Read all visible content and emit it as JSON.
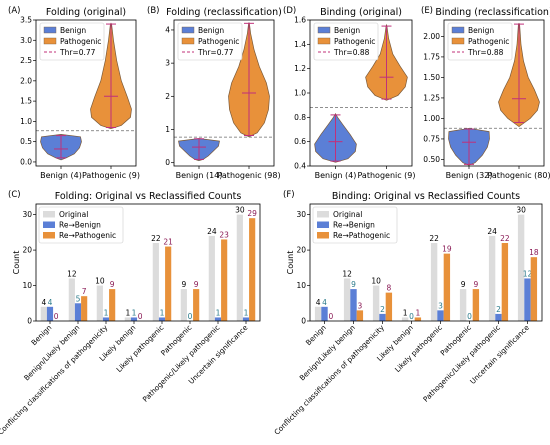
{
  "colors": {
    "benign": "#5b7fd6",
    "pathogenic": "#e8913a",
    "violin_edge": "#7a5a3a",
    "whisker": "#c0307a",
    "threshold": "#6a6a6a",
    "original_bar": "#dcdcdc",
    "re_benign_bar": "#5b7fd6",
    "re_pathogenic_bar": "#e8913a",
    "lbl_original": "#000000",
    "lbl_re_benign": "#2a7a8a",
    "lbl_re_pathogenic": "#8a1a55"
  },
  "chart_data": [
    {
      "panel": "(A)",
      "type": "violin",
      "title": "Folding (original)",
      "legend": [
        "Benign",
        "Pathogenic",
        "Thr=0.77"
      ],
      "legend_position": "top-left",
      "categories": [
        "Benign (4)",
        "Pathogenic (9)"
      ],
      "threshold": 0.77,
      "ylim": [
        -0.1,
        3.5
      ],
      "yticks": [
        0.0,
        0.5,
        1.0,
        1.5,
        2.0,
        2.5,
        3.0,
        3.5
      ],
      "ytick_labels": [
        "0.0",
        "0.5",
        "1.0",
        "1.5",
        "2.0",
        "2.5",
        "3.0",
        "3.5"
      ],
      "violins": [
        {
          "series": "Benign",
          "min": 0.1,
          "max": 0.65,
          "median": 0.32,
          "profile": [
            [
              0.05,
              0.0
            ],
            [
              0.1,
              0.25
            ],
            [
              0.2,
              0.65
            ],
            [
              0.35,
              0.9
            ],
            [
              0.5,
              1.0
            ],
            [
              0.62,
              0.95
            ],
            [
              0.68,
              0.0
            ]
          ]
        },
        {
          "series": "Pathogenic",
          "min": 0.85,
          "max": 3.4,
          "median": 1.62,
          "profile": [
            [
              0.82,
              0.0
            ],
            [
              0.9,
              0.5
            ],
            [
              1.1,
              0.95
            ],
            [
              1.3,
              1.0
            ],
            [
              1.6,
              0.8
            ],
            [
              2.0,
              0.5
            ],
            [
              2.5,
              0.28
            ],
            [
              3.0,
              0.12
            ],
            [
              3.4,
              0.03
            ],
            [
              3.42,
              0.0
            ]
          ]
        }
      ]
    },
    {
      "panel": "(B)",
      "type": "violin",
      "title": "Folding (reclassification)",
      "legend": [
        "Benign",
        "Pathogenic",
        "Thr=0.77"
      ],
      "legend_position": "top-left",
      "categories": [
        "Benign (14)",
        "Pathogenic (98)"
      ],
      "threshold": 0.77,
      "ylim": [
        -0.1,
        4.3
      ],
      "yticks": [
        0,
        1,
        2,
        3,
        4
      ],
      "ytick_labels": [
        "0",
        "1",
        "2",
        "3",
        "4"
      ],
      "violins": [
        {
          "series": "Benign",
          "min": 0.1,
          "max": 0.72,
          "median": 0.47,
          "profile": [
            [
              0.06,
              0.0
            ],
            [
              0.1,
              0.2
            ],
            [
              0.2,
              0.45
            ],
            [
              0.35,
              0.7
            ],
            [
              0.5,
              0.95
            ],
            [
              0.65,
              1.0
            ],
            [
              0.73,
              0.0
            ]
          ]
        },
        {
          "series": "Pathogenic",
          "min": 0.82,
          "max": 4.2,
          "median": 2.1,
          "profile": [
            [
              0.78,
              0.0
            ],
            [
              0.9,
              0.4
            ],
            [
              1.2,
              0.75
            ],
            [
              1.6,
              0.95
            ],
            [
              2.0,
              1.0
            ],
            [
              2.4,
              0.85
            ],
            [
              2.9,
              0.5
            ],
            [
              3.4,
              0.25
            ],
            [
              3.9,
              0.08
            ],
            [
              4.2,
              0.02
            ],
            [
              4.22,
              0.0
            ]
          ]
        }
      ]
    },
    {
      "panel": "(D)",
      "type": "violin",
      "title": "Binding (original)",
      "legend": [
        "Benign",
        "Pathogenic",
        "Thr=0.88"
      ],
      "legend_position": "top-left",
      "categories": [
        "Benign (4)",
        "Pathogenic (9)"
      ],
      "threshold": 0.88,
      "ylim": [
        0.4,
        1.6
      ],
      "yticks": [
        0.4,
        0.6,
        0.8,
        1.0,
        1.2,
        1.4,
        1.6
      ],
      "ytick_labels": [
        "0.4",
        "0.6",
        "0.8",
        "1.0",
        "1.2",
        "1.4",
        "1.6"
      ],
      "violins": [
        {
          "series": "Benign",
          "min": 0.44,
          "max": 0.82,
          "median": 0.6,
          "profile": [
            [
              0.43,
              0.0
            ],
            [
              0.46,
              0.6
            ],
            [
              0.52,
              0.95
            ],
            [
              0.58,
              1.0
            ],
            [
              0.66,
              0.7
            ],
            [
              0.74,
              0.35
            ],
            [
              0.8,
              0.1
            ],
            [
              0.83,
              0.0
            ]
          ]
        },
        {
          "series": "Pathogenic",
          "min": 0.95,
          "max": 1.55,
          "median": 1.13,
          "profile": [
            [
              0.94,
              0.0
            ],
            [
              0.98,
              0.55
            ],
            [
              1.05,
              0.9
            ],
            [
              1.13,
              1.0
            ],
            [
              1.22,
              0.65
            ],
            [
              1.32,
              0.3
            ],
            [
              1.45,
              0.1
            ],
            [
              1.55,
              0.02
            ],
            [
              1.56,
              0.0
            ]
          ]
        }
      ]
    },
    {
      "panel": "(E)",
      "type": "violin",
      "title": "Binding (reclassification)",
      "legend": [
        "Benign",
        "Pathogenic",
        "Thr=0.88"
      ],
      "legend_position": "top-left",
      "categories": [
        "Benign (32)",
        "Pathogenic (80)"
      ],
      "threshold": 0.88,
      "ylim": [
        0.42,
        2.2
      ],
      "yticks": [
        0.5,
        0.75,
        1.0,
        1.25,
        1.5,
        1.75,
        2.0
      ],
      "ytick_labels": [
        "0.50",
        "0.75",
        "1.00",
        "1.25",
        "1.50",
        "1.75",
        "2.00"
      ],
      "violins": [
        {
          "series": "Benign",
          "min": 0.44,
          "max": 0.87,
          "median": 0.71,
          "profile": [
            [
              0.43,
              0.0
            ],
            [
              0.46,
              0.3
            ],
            [
              0.55,
              0.65
            ],
            [
              0.65,
              0.9
            ],
            [
              0.75,
              1.0
            ],
            [
              0.84,
              0.98
            ],
            [
              0.88,
              0.0
            ]
          ]
        },
        {
          "series": "Pathogenic",
          "min": 0.95,
          "max": 2.15,
          "median": 1.24,
          "profile": [
            [
              0.9,
              0.0
            ],
            [
              1.0,
              0.55
            ],
            [
              1.1,
              0.9
            ],
            [
              1.2,
              1.0
            ],
            [
              1.35,
              0.75
            ],
            [
              1.5,
              0.45
            ],
            [
              1.7,
              0.22
            ],
            [
              1.9,
              0.1
            ],
            [
              2.15,
              0.03
            ],
            [
              2.16,
              0.0
            ]
          ]
        }
      ]
    },
    {
      "panel": "(C)",
      "type": "bar",
      "title": "Folding: Original vs Reclassified Counts",
      "ylabel": "Count",
      "ylim": [
        0,
        33
      ],
      "yticks": [
        0,
        10,
        20,
        30
      ],
      "ytick_labels": [
        "0",
        "10",
        "20",
        "30"
      ],
      "legend_position": "top-left",
      "categories": [
        "Benign",
        "Benign/Likely benign",
        "Conflicting classifications of pathogenicity",
        "Likely benign",
        "Likely pathogenic",
        "Pathogenic",
        "Pathogenic/Likely pathogenic",
        "Uncertain significance"
      ],
      "series": [
        {
          "name": "Original",
          "values": [
            4,
            12,
            10,
            1,
            22,
            9,
            24,
            30
          ]
        },
        {
          "name": "Re→Benign",
          "values": [
            4,
            5,
            1,
            1,
            1,
            0,
            1,
            1
          ]
        },
        {
          "name": "Re→Pathogenic",
          "values": [
            0,
            7,
            9,
            0,
            21,
            9,
            23,
            29
          ]
        }
      ]
    },
    {
      "panel": "(F)",
      "type": "bar",
      "title": "Binding: Original vs Reclassified Counts",
      "ylabel": "Count",
      "ylim": [
        0,
        33
      ],
      "yticks": [
        0,
        10,
        20,
        30
      ],
      "ytick_labels": [
        "0",
        "10",
        "20",
        "30"
      ],
      "legend_position": "top-left",
      "categories": [
        "Benign",
        "Benign/Likely benign",
        "Conflicting classifications of pathogenicity",
        "Likely benign",
        "Likely pathogenic",
        "Pathogenic",
        "Pathogenic/Likely pathogenic",
        "Uncertain significance"
      ],
      "series": [
        {
          "name": "Original",
          "values": [
            4,
            12,
            10,
            1,
            22,
            9,
            24,
            30
          ]
        },
        {
          "name": "Re→Benign",
          "values": [
            4,
            9,
            2,
            0,
            3,
            0,
            2,
            12
          ]
        },
        {
          "name": "Re→Pathogenic",
          "values": [
            0,
            3,
            8,
            1,
            19,
            9,
            22,
            18
          ]
        }
      ]
    }
  ]
}
